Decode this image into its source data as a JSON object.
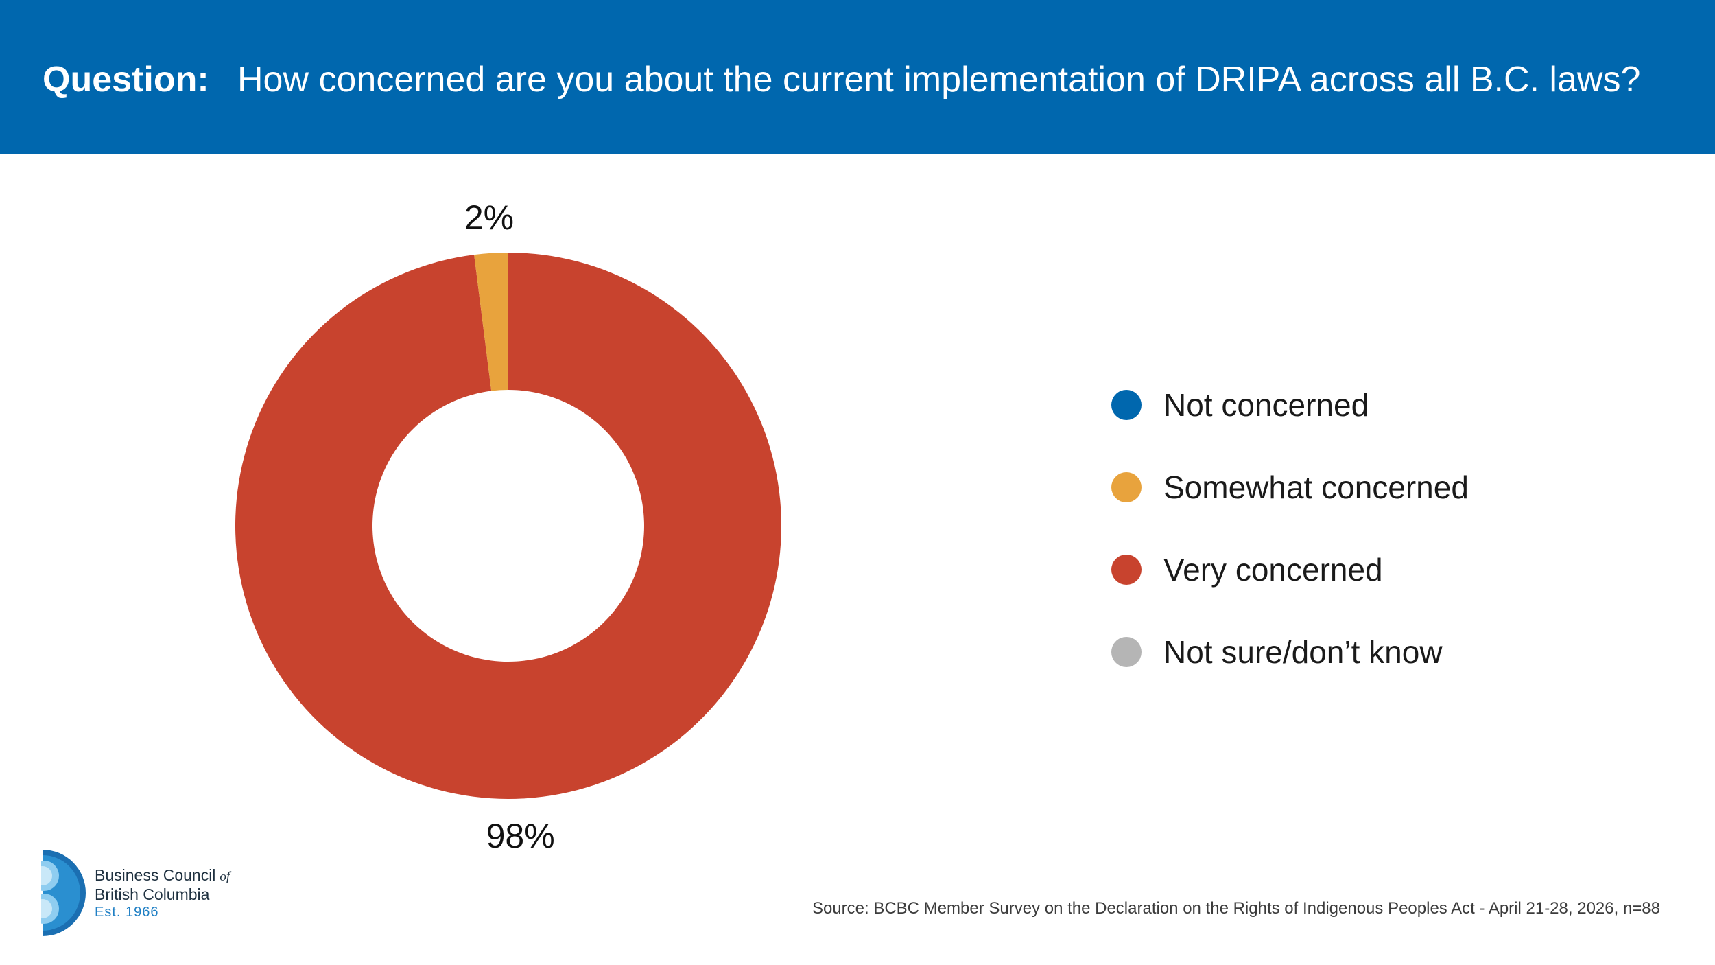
{
  "header": {
    "question_label": "Question:",
    "question_text": "How concerned are you about the current implementation of DRIPA across all B.C. laws?",
    "background_color": "#0067ae"
  },
  "chart_data": {
    "type": "pie",
    "subtype": "donut",
    "categories": [
      "Not concerned",
      "Somewhat concerned",
      "Very concerned",
      "Not sure/don’t know"
    ],
    "values": [
      0,
      2,
      98,
      0
    ],
    "data_labels": [
      "",
      "2%",
      "98%",
      ""
    ],
    "colors": [
      "#0067ae",
      "#e8a33d",
      "#c8432e",
      "#b5b5b5"
    ],
    "legend_position": "right"
  },
  "legend": {
    "items": [
      {
        "label": "Not concerned",
        "color": "#0067ae"
      },
      {
        "label": "Somewhat concerned",
        "color": "#e8a33d"
      },
      {
        "label": "Very concerned",
        "color": "#c8432e"
      },
      {
        "label": "Not sure/don’t know",
        "color": "#b5b5b5"
      }
    ]
  },
  "logo": {
    "line1": "Business Council",
    "of": "of",
    "line2": "British Columbia",
    "line3": "Est. 1966"
  },
  "footer": {
    "source": "Source: BCBC Member Survey on the Declaration on the Rights of Indigenous Peoples Act - April 21-28, 2026, n=88"
  }
}
